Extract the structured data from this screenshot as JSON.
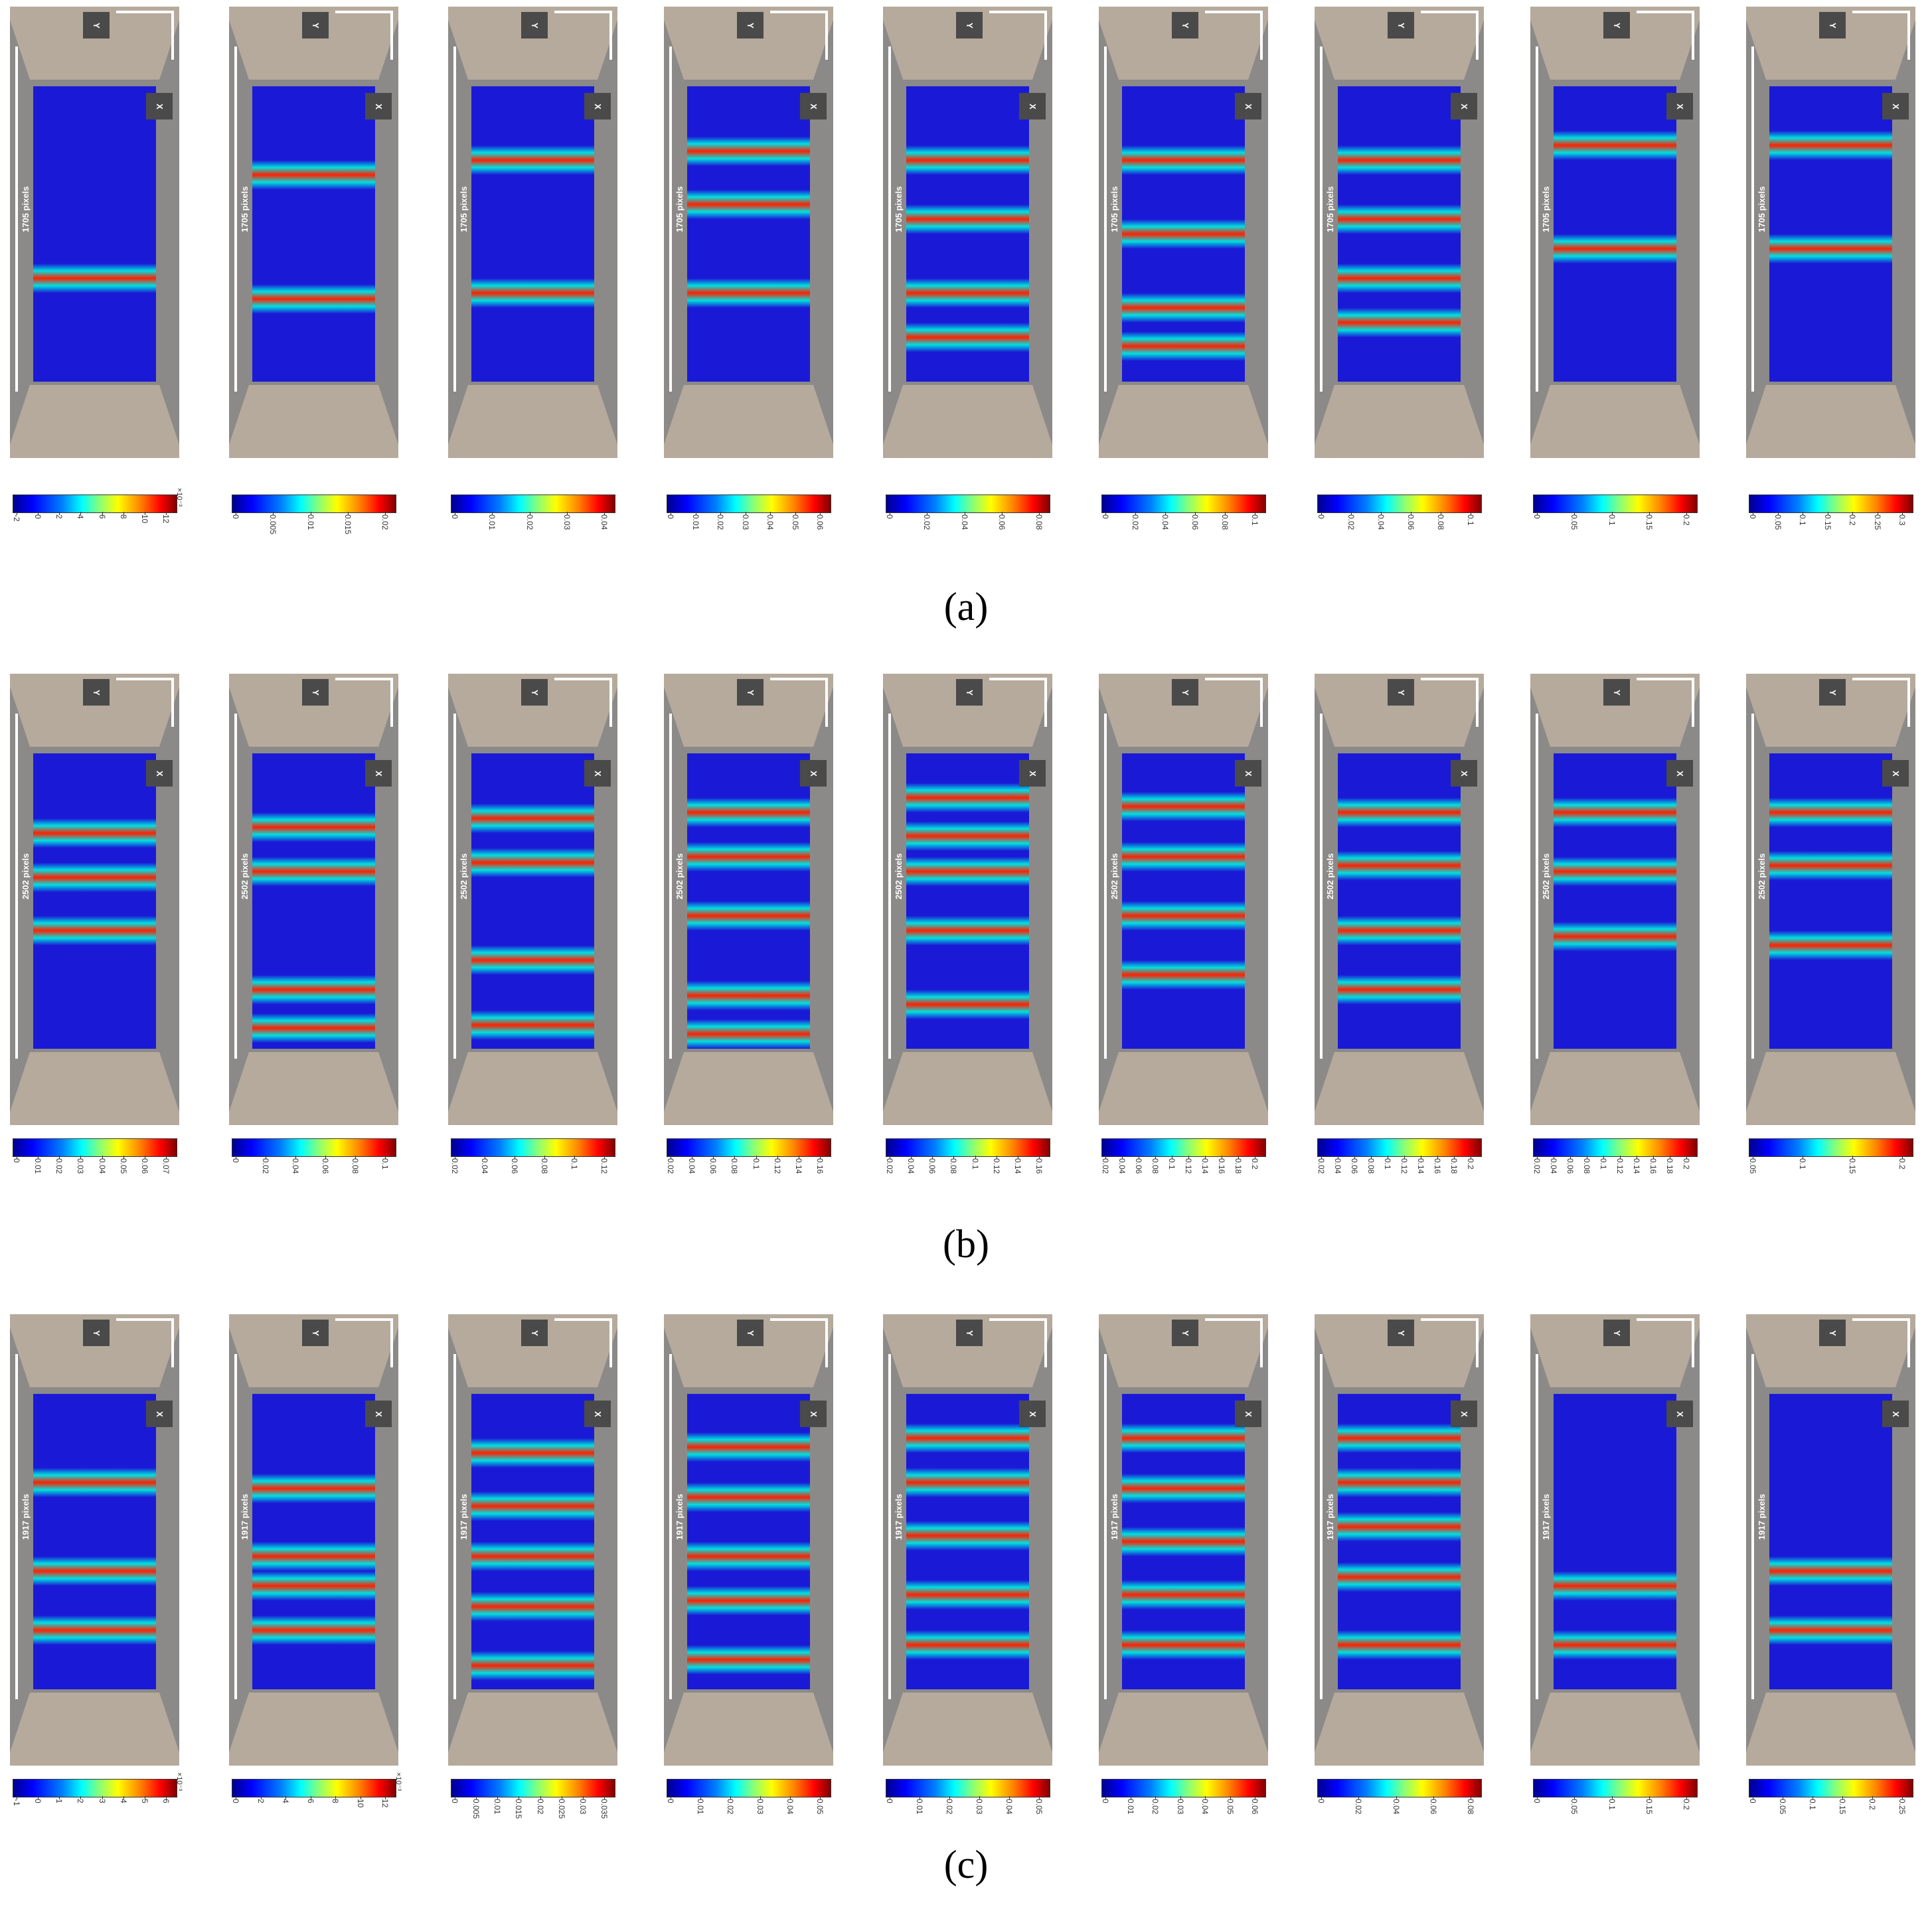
{
  "rows": [
    {
      "label": "(a)",
      "scale_text": "1705 pixels",
      "axis_y": "Y",
      "axis_x": "X",
      "colorbars": [
        {
          "ticks": [
            "-2",
            "0",
            "2",
            "4",
            "6",
            "8",
            "10",
            "12"
          ],
          "exponent": "×10⁻³"
        },
        {
          "ticks": [
            "0",
            "0.005",
            "0.01",
            "0.015",
            "0.02"
          ],
          "exponent": ""
        },
        {
          "ticks": [
            "0",
            "0.01",
            "0.02",
            "0.03",
            "0.04"
          ],
          "exponent": ""
        },
        {
          "ticks": [
            "0",
            "0.01",
            "0.02",
            "0.03",
            "0.04",
            "0.05",
            "0.06"
          ],
          "exponent": ""
        },
        {
          "ticks": [
            "0",
            "0.02",
            "0.04",
            "0.06",
            "0.08"
          ],
          "exponent": ""
        },
        {
          "ticks": [
            "0",
            "0.02",
            "0.04",
            "0.06",
            "0.08",
            "0.1"
          ],
          "exponent": ""
        },
        {
          "ticks": [
            "0",
            "0.02",
            "0.04",
            "0.06",
            "0.08",
            "0.1"
          ],
          "exponent": ""
        },
        {
          "ticks": [
            "0",
            "0.05",
            "0.1",
            "0.15",
            "0.2"
          ],
          "exponent": ""
        },
        {
          "ticks": [
            "0",
            "0.05",
            "0.1",
            "0.15",
            "0.2",
            "0.25",
            "0.3"
          ],
          "exponent": ""
        }
      ]
    },
    {
      "label": "(b)",
      "scale_text": "2502 pixels",
      "axis_y": "Y",
      "axis_x": "X",
      "colorbars": [
        {
          "ticks": [
            "0",
            "0.01",
            "0.02",
            "0.03",
            "0.04",
            "0.05",
            "0.06",
            "0.07"
          ],
          "exponent": ""
        },
        {
          "ticks": [
            "0",
            "0.02",
            "0.04",
            "0.06",
            "0.08",
            "0.1"
          ],
          "exponent": ""
        },
        {
          "ticks": [
            "0.02",
            "0.04",
            "0.06",
            "0.08",
            "0.1",
            "0.12"
          ],
          "exponent": ""
        },
        {
          "ticks": [
            "0.02",
            "0.04",
            "0.06",
            "0.08",
            "0.1",
            "0.12",
            "0.14",
            "0.16"
          ],
          "exponent": ""
        },
        {
          "ticks": [
            "0.02",
            "0.04",
            "0.06",
            "0.08",
            "0.1",
            "0.12",
            "0.14",
            "0.16"
          ],
          "exponent": ""
        },
        {
          "ticks": [
            "0.02",
            "0.04",
            "0.06",
            "0.08",
            "0.1",
            "0.12",
            "0.14",
            "0.16",
            "0.18",
            "0.2"
          ],
          "exponent": ""
        },
        {
          "ticks": [
            "0.02",
            "0.04",
            "0.06",
            "0.08",
            "0.1",
            "0.12",
            "0.14",
            "0.16",
            "0.18",
            "0.2"
          ],
          "exponent": ""
        },
        {
          "ticks": [
            "0.02",
            "0.04",
            "0.06",
            "0.08",
            "0.1",
            "0.12",
            "0.14",
            "0.16",
            "0.18",
            "0.2"
          ],
          "exponent": ""
        },
        {
          "ticks": [
            "0.05",
            "0.1",
            "0.15",
            "0.2"
          ],
          "exponent": ""
        }
      ]
    },
    {
      "label": "(c)",
      "scale_text": "1917 pixels",
      "axis_y": "Y",
      "axis_x": "X",
      "colorbars": [
        {
          "ticks": [
            "-1",
            "0",
            "1",
            "2",
            "3",
            "4",
            "5",
            "6"
          ],
          "exponent": "×10⁻³"
        },
        {
          "ticks": [
            "0",
            "2",
            "4",
            "6",
            "8",
            "10",
            "12"
          ],
          "exponent": "×10⁻³"
        },
        {
          "ticks": [
            "0",
            "0.005",
            "0.01",
            "0.015",
            "0.02",
            "0.025",
            "0.03",
            "0.035"
          ],
          "exponent": ""
        },
        {
          "ticks": [
            "0",
            "0.01",
            "0.02",
            "0.03",
            "0.04",
            "0.05"
          ],
          "exponent": ""
        },
        {
          "ticks": [
            "0",
            "0.01",
            "0.02",
            "0.03",
            "0.04",
            "0.05"
          ],
          "exponent": ""
        },
        {
          "ticks": [
            "0",
            "0.01",
            "0.02",
            "0.03",
            "0.04",
            "0.05",
            "0.06"
          ],
          "exponent": ""
        },
        {
          "ticks": [
            "0",
            "0.02",
            "0.04",
            "0.06",
            "0.08"
          ],
          "exponent": ""
        },
        {
          "ticks": [
            "0",
            "0.05",
            "0.1",
            "0.15",
            "0.2"
          ],
          "exponent": ""
        },
        {
          "ticks": [
            "0",
            "0.05",
            "0.1",
            "0.15",
            "0.2",
            "0.25"
          ],
          "exponent": ""
        }
      ]
    }
  ],
  "colors": {
    "field_low": "#1a1ad6",
    "field_mid": "#00e0e0",
    "field_high": "#ff2000",
    "concrete": "#b5aa9c",
    "background": "#8c8a88"
  }
}
